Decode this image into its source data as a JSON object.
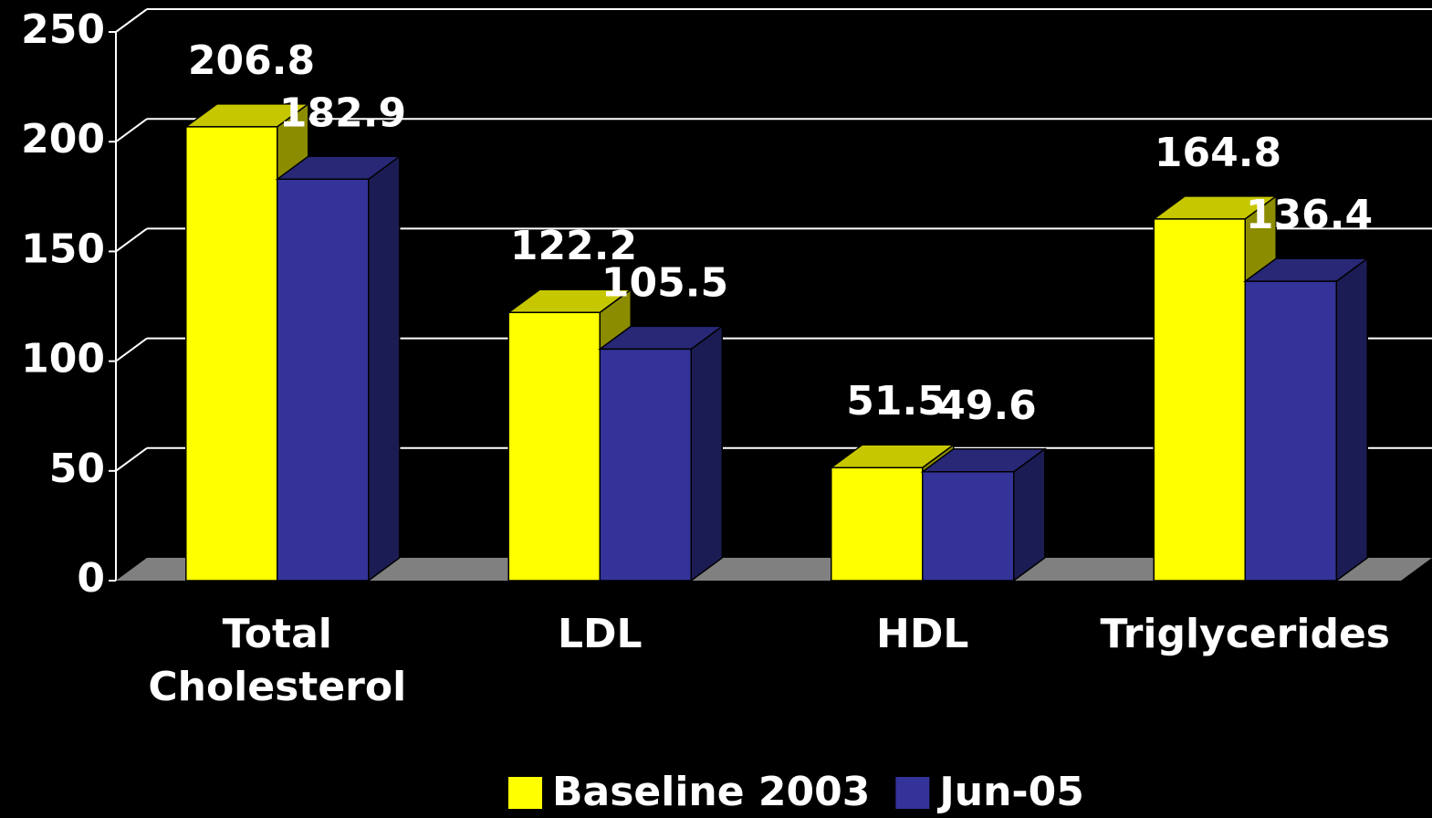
{
  "chart_data": {
    "type": "bar3d",
    "categories": [
      "Total Cholesterol",
      "LDL",
      "HDL",
      "Triglycerides"
    ],
    "series": [
      {
        "name": "Baseline 2003",
        "color": "#ffff00",
        "values": [
          206.8,
          122.2,
          51.5,
          164.8
        ]
      },
      {
        "name": "Jun-05",
        "color": "#333399",
        "values": [
          182.9,
          105.5,
          49.6,
          136.4
        ]
      }
    ],
    "ylim": [
      0,
      250
    ],
    "yticks": [
      0,
      50,
      100,
      150,
      200,
      250
    ],
    "grid": true,
    "legend": "bottom"
  }
}
